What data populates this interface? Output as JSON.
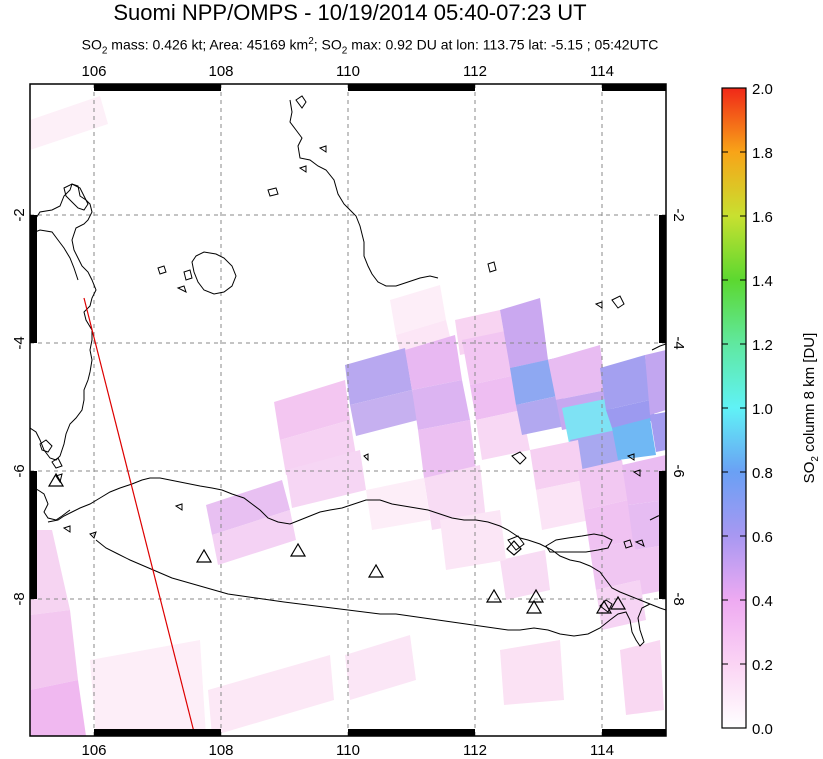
{
  "title": "Suomi NPP/OMPS - 10/19/2014 05:40-07:23 UT",
  "subtitle": {
    "so2_mass": "SO",
    "so2_mass_sub": "2",
    "mass_text": " mass: 0.426 kt; Area: 45169 km",
    "area_sup": "2",
    "max_prefix": "; SO",
    "max_sub": "2",
    "max_text": " max: 0.92 DU at lon: 113.75 lat: -5.15 ; 05:42UTC"
  },
  "map": {
    "lon_range": [
      105,
      115
    ],
    "lat_range": [
      -10.2,
      -0.4
    ],
    "lon_ticks": [
      "106",
      "108",
      "110",
      "112",
      "114"
    ],
    "lat_ticks": [
      "-2",
      "-4",
      "-6",
      "-8"
    ],
    "volcano_count": 12
  },
  "colorbar": {
    "label": "SO2 column 8 km [DU]",
    "label_main": "SO",
    "label_sub": "2",
    "label_rest": " column 8 km [DU]",
    "ticks": [
      "2.0",
      "1.8",
      "1.6",
      "1.4",
      "1.2",
      "1.0",
      "0.8",
      "0.6",
      "0.4",
      "0.2",
      "0.0"
    ],
    "range": [
      0,
      2
    ]
  },
  "colors": {
    "coast": "#000000",
    "track": "#dd0000",
    "grid": "#888888"
  }
}
